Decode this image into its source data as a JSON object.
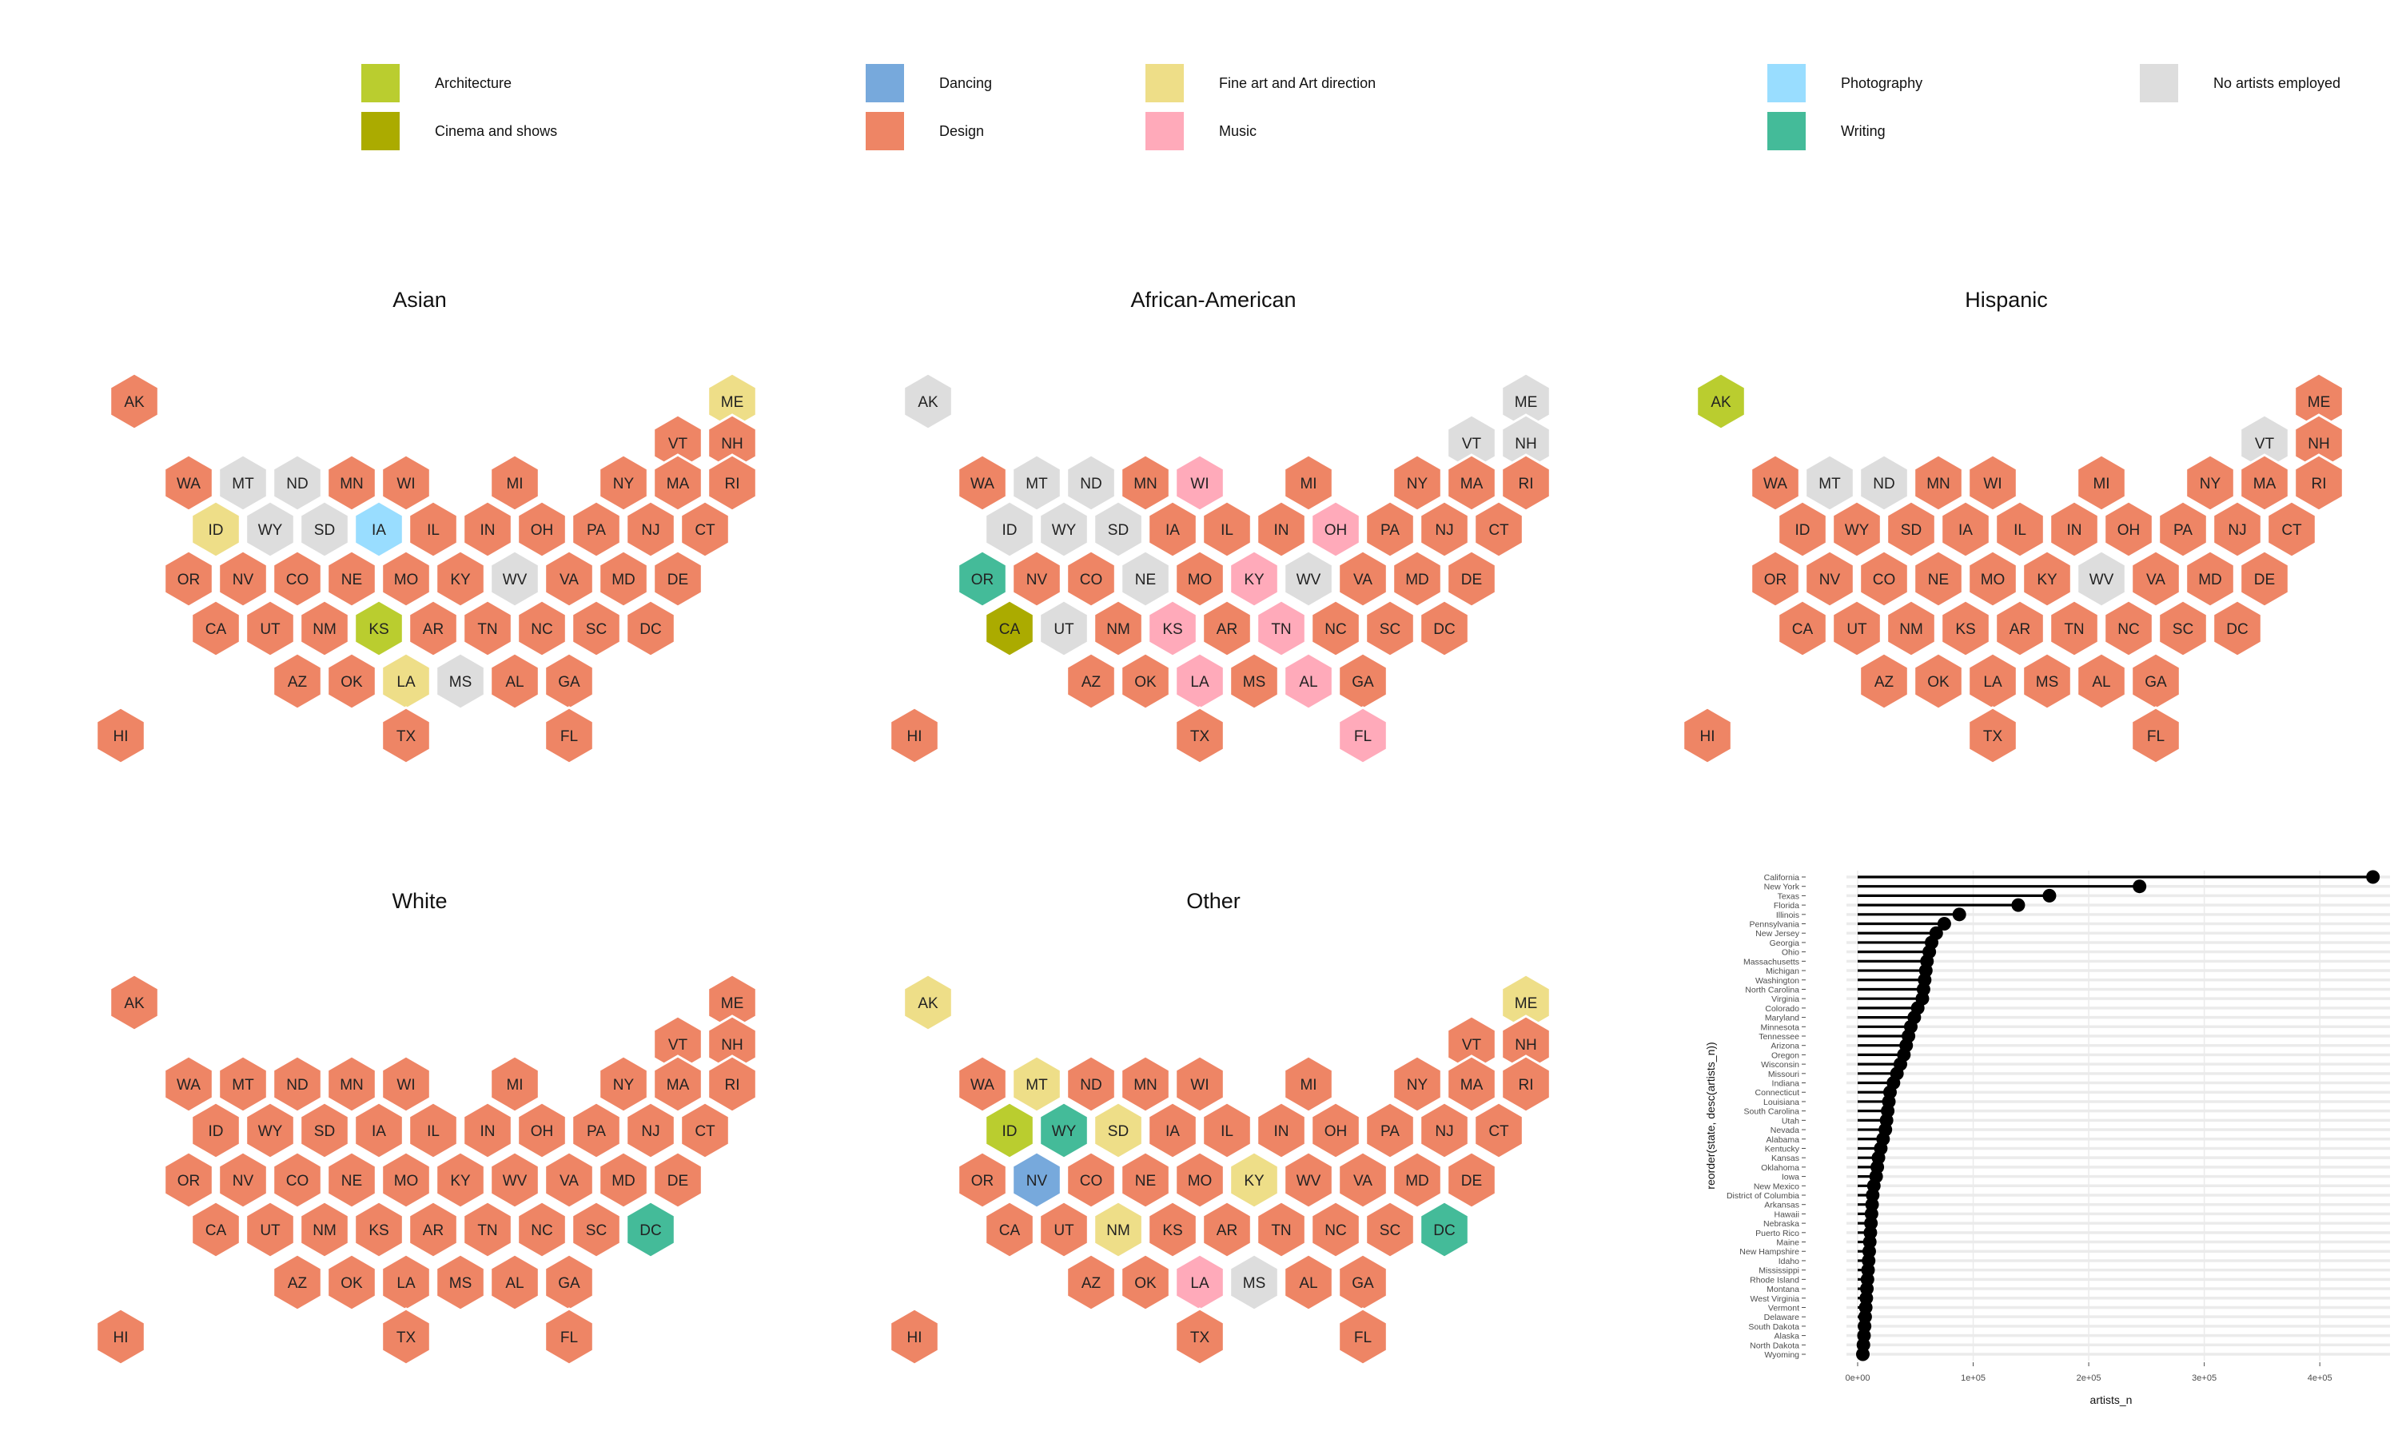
{
  "legend": [
    {
      "label": "Architecture",
      "color": "#BACD2F"
    },
    {
      "label": "Cinema and shows",
      "color": "#ABAB00"
    },
    {
      "label": "Dancing",
      "color": "#77A9DC"
    },
    {
      "label": "Design",
      "color": "#EE8565"
    },
    {
      "label": "Fine art and Art direction",
      "color": "#EEDE88"
    },
    {
      "label": "Music",
      "color": "#FFAABA"
    },
    {
      "label": "Photography",
      "color": "#99DDFF"
    },
    {
      "label": "Writing",
      "color": "#44BB99"
    },
    {
      "label": "No artists employed",
      "color": "#DDDDDD"
    }
  ],
  "chart_data": [
    {
      "type": "hexbin-map",
      "title": "Asian",
      "default": "Design",
      "exceptions": {
        "ME": "Fine art and Art direction",
        "MT": "No artists employed",
        "ND": "No artists employed",
        "ID": "Fine art and Art direction",
        "WY": "No artists employed",
        "SD": "No artists employed",
        "IA": "Photography",
        "WV": "No artists employed",
        "KS": "Architecture",
        "LA": "Fine art and Art direction",
        "MS": "No artists employed"
      }
    },
    {
      "type": "hexbin-map",
      "title": "African-American",
      "default": "Design",
      "exceptions": {
        "AK": "No artists employed",
        "ME": "No artists employed",
        "VT": "No artists employed",
        "NH": "No artists employed",
        "MT": "No artists employed",
        "ND": "No artists employed",
        "WI": "Music",
        "ID": "No artists employed",
        "WY": "No artists employed",
        "SD": "No artists employed",
        "OH": "Music",
        "OR": "Writing",
        "NE": "No artists employed",
        "KY": "Music",
        "WV": "No artists employed",
        "CA": "Cinema and shows",
        "UT": "No artists employed",
        "KS": "Music",
        "TN": "Music",
        "LA": "Music",
        "AL": "Music",
        "FL": "Music"
      }
    },
    {
      "type": "hexbin-map",
      "title": "Hispanic",
      "default": "Design",
      "exceptions": {
        "AK": "Architecture",
        "VT": "No artists employed",
        "MT": "No artists employed",
        "ND": "No artists employed",
        "WV": "No artists employed"
      }
    },
    {
      "type": "hexbin-map",
      "title": "White",
      "default": "Design",
      "exceptions": {
        "DC": "Writing"
      }
    },
    {
      "type": "hexbin-map",
      "title": "Other",
      "default": "Design",
      "exceptions": {
        "AK": "Fine art and Art direction",
        "ME": "Fine art and Art direction",
        "MT": "Fine art and Art direction",
        "ID": "Architecture",
        "WY": "Writing",
        "SD": "Fine art and Art direction",
        "NV": "Dancing",
        "KY": "Fine art and Art direction",
        "NM": "Fine art and Art direction",
        "DC": "Writing",
        "LA": "Music",
        "MS": "No artists employed"
      }
    },
    {
      "type": "lollipop",
      "title": "",
      "xlabel": "artists_n",
      "ylabel": "reorder(state, desc(artists_n))",
      "xlim": [
        0,
        460000
      ],
      "xticks": [
        0,
        100000,
        200000,
        300000,
        400000
      ],
      "xtick_labels": [
        "0e+00",
        "1e+05",
        "2e+05",
        "3e+05",
        "4e+05"
      ],
      "grid": true,
      "categories": [
        "California",
        "New York",
        "Texas",
        "Florida",
        "Illinois",
        "Pennsylvania",
        "New Jersey",
        "Georgia",
        "Ohio",
        "Massachusetts",
        "Michigan",
        "Washington",
        "North Carolina",
        "Virginia",
        "Colorado",
        "Maryland",
        "Minnesota",
        "Tennessee",
        "Arizona",
        "Oregon",
        "Wisconsin",
        "Missouri",
        "Indiana",
        "Connecticut",
        "Louisiana",
        "South Carolina",
        "Utah",
        "Nevada",
        "Alabama",
        "Kentucky",
        "Kansas",
        "Oklahoma",
        "Iowa",
        "New Mexico",
        "District of Columbia",
        "Arkansas",
        "Hawaii",
        "Nebraska",
        "Puerto Rico",
        "Maine",
        "New Hampshire",
        "Idaho",
        "Mississippi",
        "Rhode Island",
        "Montana",
        "West Virginia",
        "Vermont",
        "Delaware",
        "South Dakota",
        "Alaska",
        "North Dakota",
        "Wyoming"
      ],
      "values": [
        446000,
        244000,
        166000,
        139000,
        88000,
        75000,
        68000,
        64000,
        62000,
        60000,
        59000,
        58000,
        57000,
        56000,
        52000,
        49000,
        46000,
        44000,
        42000,
        40000,
        37000,
        34000,
        31000,
        28000,
        27000,
        26000,
        25000,
        24000,
        22000,
        20000,
        18000,
        17000,
        16000,
        14000,
        13000,
        12500,
        12000,
        11500,
        11000,
        10500,
        10000,
        9500,
        9000,
        8500,
        8000,
        7500,
        7000,
        6500,
        6000,
        5500,
        5000,
        4500
      ]
    }
  ]
}
